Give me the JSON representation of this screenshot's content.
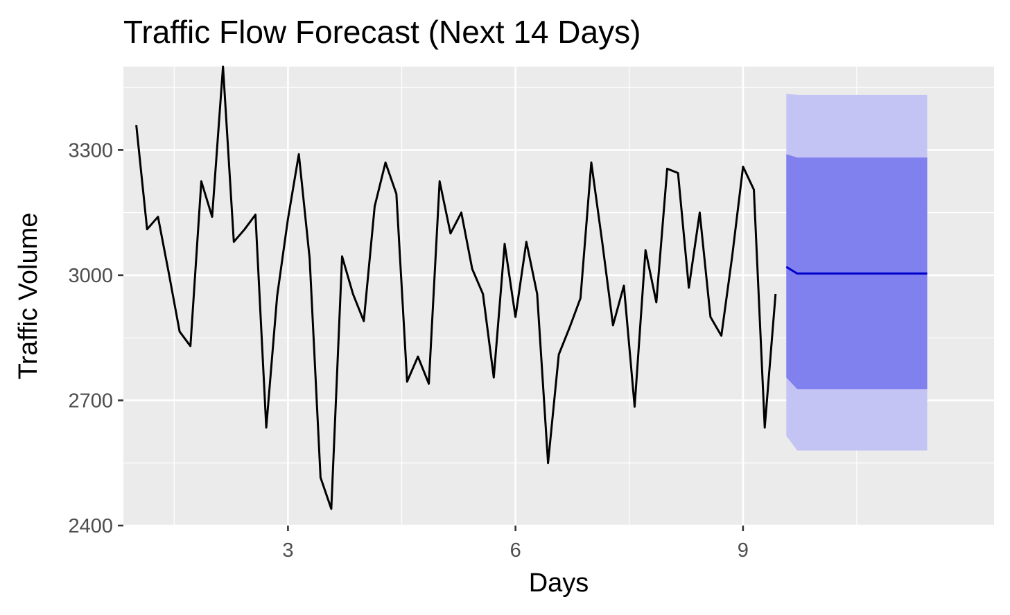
{
  "chart_data": {
    "type": "line",
    "title": "Traffic Flow Forecast (Next 14 Days)",
    "xlabel": "Days",
    "ylabel": "Traffic Volume",
    "xlim": [
      0.83,
      12.31
    ],
    "ylim": [
      2400,
      3500
    ],
    "xticks": [
      3,
      6,
      9
    ],
    "yticks": [
      2400,
      2700,
      3000,
      3300
    ],
    "x_minor_gridlines": [
      1.5,
      4.5,
      7.5,
      10.5
    ],
    "y_minor_gridlines": [
      2550,
      2850,
      3150,
      3450
    ],
    "grid": true,
    "legend": "none",
    "panel_background": "#ebebeb",
    "colors": {
      "history_line": "#000000",
      "forecast_line": "#0000cc",
      "interval_95": "#c4c4f4",
      "interval_80": "#8080ee"
    },
    "series": [
      {
        "name": "",
        "type": "line",
        "x": [
          1.0,
          1.143,
          1.286,
          1.429,
          1.571,
          1.714,
          1.857,
          2.0,
          2.143,
          2.286,
          2.429,
          2.571,
          2.714,
          2.857,
          3.0,
          3.143,
          3.286,
          3.429,
          3.571,
          3.714,
          3.857,
          4.0,
          4.143,
          4.286,
          4.429,
          4.571,
          4.714,
          4.857,
          5.0,
          5.143,
          5.286,
          5.429,
          5.571,
          5.714,
          5.857,
          6.0,
          6.143,
          6.286,
          6.429,
          6.571,
          6.714,
          6.857,
          7.0,
          7.143,
          7.286,
          7.429,
          7.571,
          7.714,
          7.857,
          8.0,
          8.143,
          8.286,
          8.429,
          8.571,
          8.714,
          8.857,
          9.0,
          9.143,
          9.286,
          9.429
        ],
        "values": [
          3360,
          3110,
          3140,
          3005,
          2865,
          2830,
          3225,
          3140,
          3500,
          3080,
          3110,
          3145,
          2635,
          2950,
          3135,
          3290,
          3040,
          2515,
          2440,
          3045,
          2955,
          2890,
          3165,
          3270,
          3195,
          2745,
          2805,
          2740,
          3225,
          3100,
          3150,
          3015,
          2955,
          2755,
          3075,
          2900,
          3080,
          2955,
          2550,
          2810,
          2875,
          2945,
          3270,
          3080,
          2880,
          2975,
          2685,
          3060,
          2935,
          3255,
          3245,
          2970,
          3150,
          2900,
          2855,
          3045,
          3260,
          3205,
          2635,
          2955
        ]
      },
      {
        "name": "",
        "type": "forecast",
        "x": [
          9.571,
          9.714,
          11.429
        ],
        "mean": [
          3020,
          3004,
          3004
        ],
        "lower_80": [
          2755,
          2727,
          2727
        ],
        "upper_80": [
          3290,
          3282,
          3282
        ],
        "lower_95": [
          2615,
          2580,
          2580
        ],
        "upper_95": [
          3435,
          3432,
          3432
        ]
      }
    ]
  }
}
